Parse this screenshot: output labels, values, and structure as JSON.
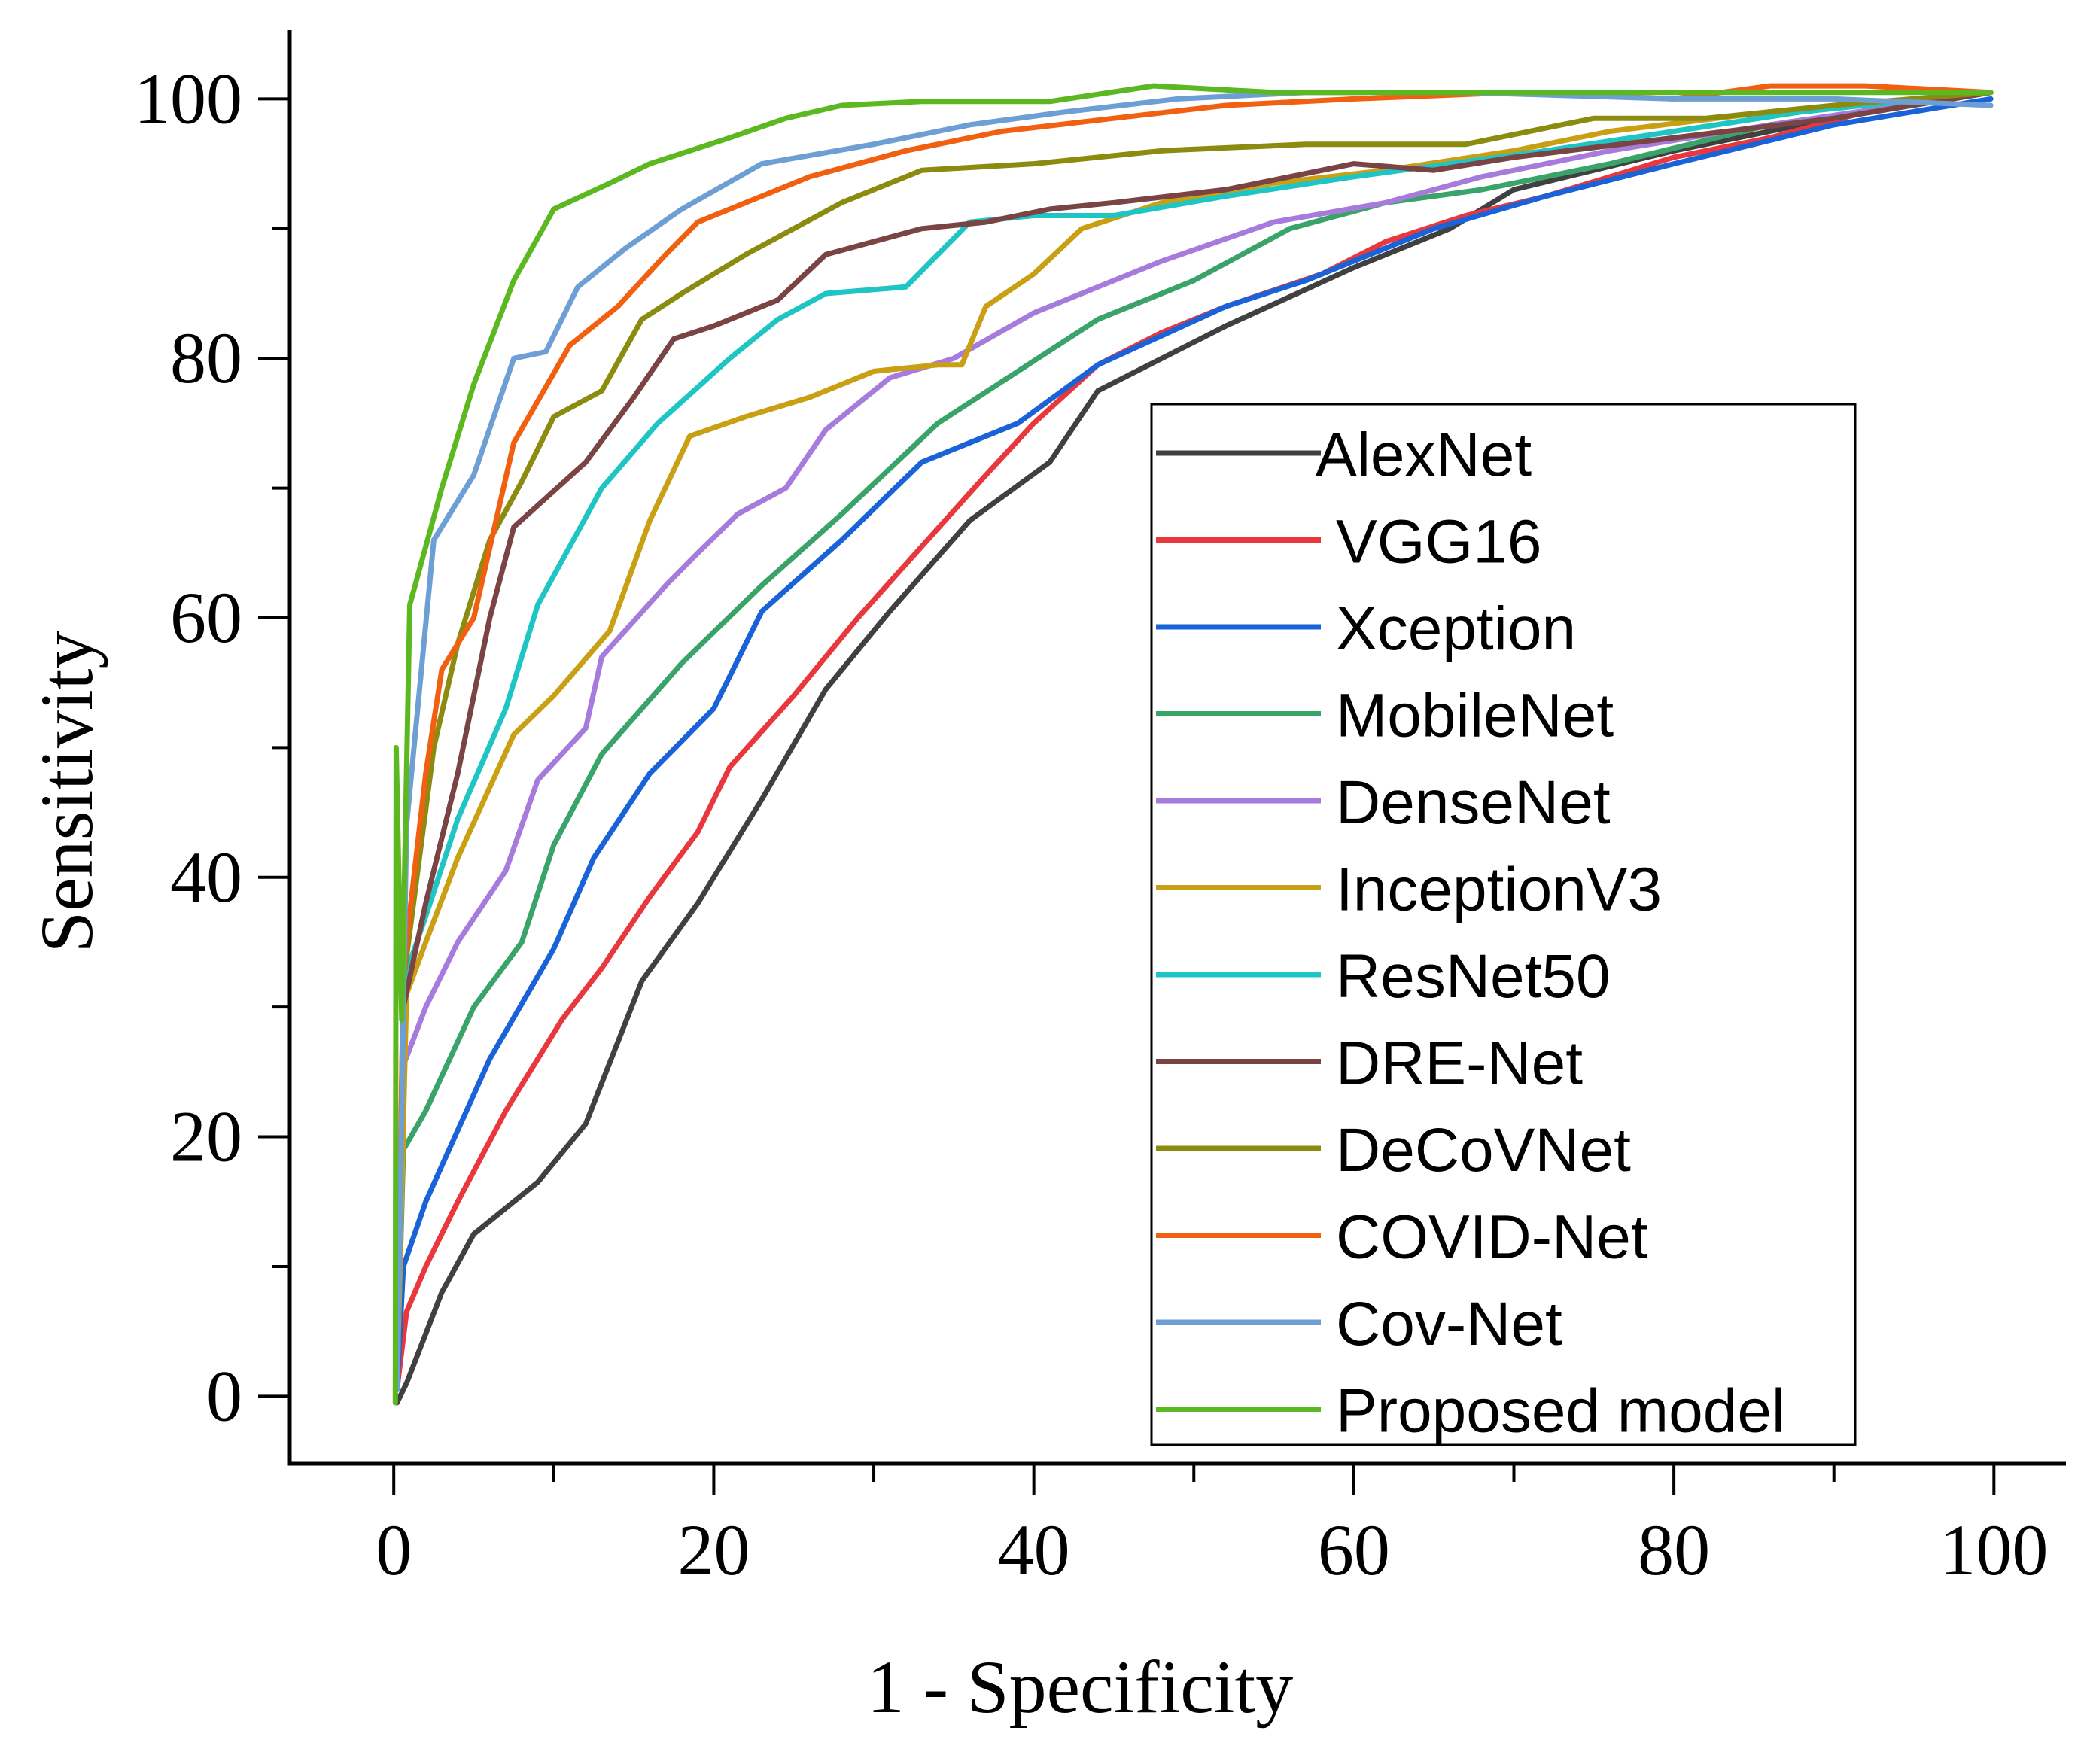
{
  "chart_data": {
    "type": "line",
    "title": "",
    "xlabel": "1 - Specificity",
    "ylabel": "Sensitivity",
    "xlim": [
      -6.5,
      104.5
    ],
    "ylim": [
      -5.2,
      105.3
    ],
    "xticks": [
      0,
      20,
      40,
      60,
      80,
      100
    ],
    "yticks": [
      0,
      20,
      40,
      60,
      80,
      100
    ],
    "xtick_labels": [
      "0",
      "20",
      "40",
      "60",
      "80",
      "100"
    ],
    "ytick_labels": [
      "0",
      "20",
      "40",
      "60",
      "80",
      "100"
    ],
    "grid": false,
    "legend_position": "bottom-right",
    "series": [
      {
        "name": "AlexNet",
        "color": "#404040",
        "x": [
          0.2,
          0.8,
          3,
          5,
          9,
          12,
          15.5,
          19,
          23,
          27,
          31,
          36,
          41,
          44,
          48,
          52,
          60,
          66,
          70,
          80,
          90,
          99.8
        ],
        "y": [
          -0.5,
          1,
          8,
          12.5,
          16.5,
          21,
          32,
          38,
          46,
          54.5,
          60.5,
          67.5,
          72,
          77.5,
          80,
          82.5,
          87,
          90,
          93,
          96,
          98.5,
          100.5
        ]
      },
      {
        "name": "VGG16",
        "color": "#e8383d",
        "x": [
          0.2,
          0.8,
          2,
          4,
          7,
          10.5,
          13,
          16,
          19,
          21,
          25,
          29,
          33,
          37,
          40,
          44,
          48,
          52,
          58,
          62,
          67,
          72,
          80,
          86,
          92,
          99.8
        ],
        "y": [
          0.5,
          6.5,
          10,
          15,
          22,
          29,
          33,
          38.5,
          43.5,
          48.5,
          54,
          60,
          65.5,
          71,
          75,
          79.5,
          82,
          84,
          86.5,
          89,
          91,
          92.5,
          95.5,
          97,
          99,
          100.5
        ]
      },
      {
        "name": "Xception",
        "color": "#1a62d8",
        "x": [
          0.2,
          0.6,
          2,
          4,
          6,
          10,
          12.5,
          16,
          20,
          23,
          28,
          33,
          39,
          44,
          52,
          57,
          65,
          72,
          80,
          90,
          99.8
        ],
        "y": [
          0.5,
          10,
          15,
          20.5,
          26,
          34.5,
          41.5,
          48,
          53,
          60.5,
          66,
          72,
          75,
          79.5,
          84,
          86,
          90,
          92.5,
          95,
          98,
          100
        ]
      },
      {
        "name": "MobileNet",
        "color": "#3aa36a",
        "x": [
          0.2,
          0.6,
          2,
          5,
          8,
          10,
          13,
          18,
          23,
          28,
          34,
          39,
          44,
          50,
          56,
          62,
          68,
          76,
          86,
          99.8
        ],
        "y": [
          1,
          19,
          22,
          30,
          35,
          42.5,
          49.5,
          56.5,
          62.5,
          68,
          75,
          79,
          83,
          86,
          90,
          92,
          93,
          95,
          98,
          100.5
        ]
      },
      {
        "name": "DenseNet",
        "color": "#a77bdb",
        "x": [
          0.2,
          0.6,
          2,
          4,
          7,
          9,
          12,
          13,
          17,
          19,
          21.5,
          24.5,
          27,
          31,
          35,
          40,
          48,
          55,
          62,
          68,
          76,
          86,
          99.8
        ],
        "y": [
          1,
          25.5,
          30,
          35,
          40.5,
          47.5,
          51.5,
          57,
          62.5,
          65,
          68,
          70,
          74.5,
          78.5,
          80,
          83.5,
          87.5,
          90.5,
          92,
          94,
          96,
          98,
          100.5
        ]
      },
      {
        "name": "InceptionV3",
        "color": "#c9a014",
        "x": [
          0.2,
          0.8,
          2,
          4,
          7.5,
          10,
          13.5,
          16,
          18.5,
          22,
          26,
          30,
          34,
          35.5,
          37,
          40,
          43,
          48,
          55,
          62,
          70,
          76,
          86,
          99.8
        ],
        "y": [
          0.5,
          31,
          35,
          41.5,
          51,
          54,
          59,
          67.5,
          74,
          75.5,
          77,
          79,
          79.5,
          79.5,
          84,
          86.5,
          90,
          92,
          93.5,
          94.5,
          96,
          97.5,
          99,
          100.5
        ]
      },
      {
        "name": "ResNet50",
        "color": "#1fc4c4",
        "x": [
          0.2,
          0.6,
          2,
          4,
          7,
          9,
          13,
          16.5,
          21,
          24,
          27,
          32,
          36,
          40,
          45,
          52,
          60,
          66,
          72,
          80,
          88,
          99.8
        ],
        "y": [
          0.5,
          32,
          37,
          44.5,
          53,
          61,
          70,
          75,
          80,
          83,
          85,
          85.5,
          90.5,
          91,
          91,
          92.5,
          94,
          95,
          96,
          97.5,
          99,
          100.5
        ]
      },
      {
        "name": "DRE-Net",
        "color": "#7a4444",
        "x": [
          0.2,
          0.6,
          2,
          4,
          6,
          7.5,
          12,
          15,
          17.5,
          20,
          24,
          27,
          33,
          37,
          41,
          45,
          52,
          60,
          65,
          70,
          80,
          90,
          99.8
        ],
        "y": [
          0.5,
          30,
          38,
          48,
          60,
          67,
          72,
          77,
          81.5,
          82.5,
          84.5,
          88,
          90,
          90.5,
          91.5,
          92,
          93,
          95,
          94.5,
          95.5,
          97,
          98.5,
          100.5
        ]
      },
      {
        "name": "DeCoVNet",
        "color": "#8b8b10",
        "x": [
          0.2,
          0.6,
          2.5,
          4,
          6,
          8,
          10,
          13,
          15.5,
          18,
          22,
          28,
          33,
          40,
          48,
          57,
          67,
          75,
          82,
          90,
          99.8
        ],
        "y": [
          0.5,
          32,
          50,
          58,
          66,
          70.5,
          75.5,
          77.5,
          83,
          85,
          88,
          92,
          94.5,
          95,
          96,
          96.5,
          96.5,
          98.5,
          98.5,
          99.5,
          100.5
        ]
      },
      {
        "name": "COVID-Net",
        "color": "#f06010",
        "x": [
          0.2,
          0.6,
          2,
          3,
          5,
          7.5,
          11,
          14,
          17,
          19,
          22,
          26,
          32,
          38,
          45,
          52,
          60,
          70,
          80,
          86,
          92,
          99.8
        ],
        "y": [
          0.5,
          33,
          48,
          56,
          60,
          73.5,
          81,
          84,
          88,
          90.5,
          92,
          94,
          96,
          97.5,
          98.5,
          99.5,
          100,
          100.5,
          100,
          101,
          101,
          100.5
        ]
      },
      {
        "name": "Cov-Net",
        "color": "#6e9fd4",
        "x": [
          0.2,
          0.8,
          2.5,
          5,
          7.5,
          9.5,
          11.5,
          14.5,
          18,
          23,
          30,
          36,
          42,
          49,
          57,
          67,
          80,
          90,
          99.8
        ],
        "y": [
          0.5,
          44,
          66,
          71,
          80,
          80.5,
          85.5,
          88.5,
          91.5,
          95,
          96.5,
          98,
          99,
          100,
          100.5,
          100.5,
          100,
          100,
          99.5
        ]
      },
      {
        "name": "Proposed model",
        "color": "#5cb820",
        "x": [
          0.1,
          0.15,
          0.5,
          1,
          3,
          5,
          7.5,
          10,
          13.5,
          16,
          21,
          24.5,
          28,
          33,
          41,
          47.5,
          55,
          65,
          80,
          90,
          99.8
        ],
        "y": [
          -0.5,
          50,
          29,
          61,
          70,
          78,
          86,
          91.5,
          93.5,
          95,
          97,
          98.5,
          99.5,
          99.8,
          99.8,
          101,
          100.5,
          100.5,
          100.5,
          100.5,
          100.5
        ]
      }
    ]
  }
}
